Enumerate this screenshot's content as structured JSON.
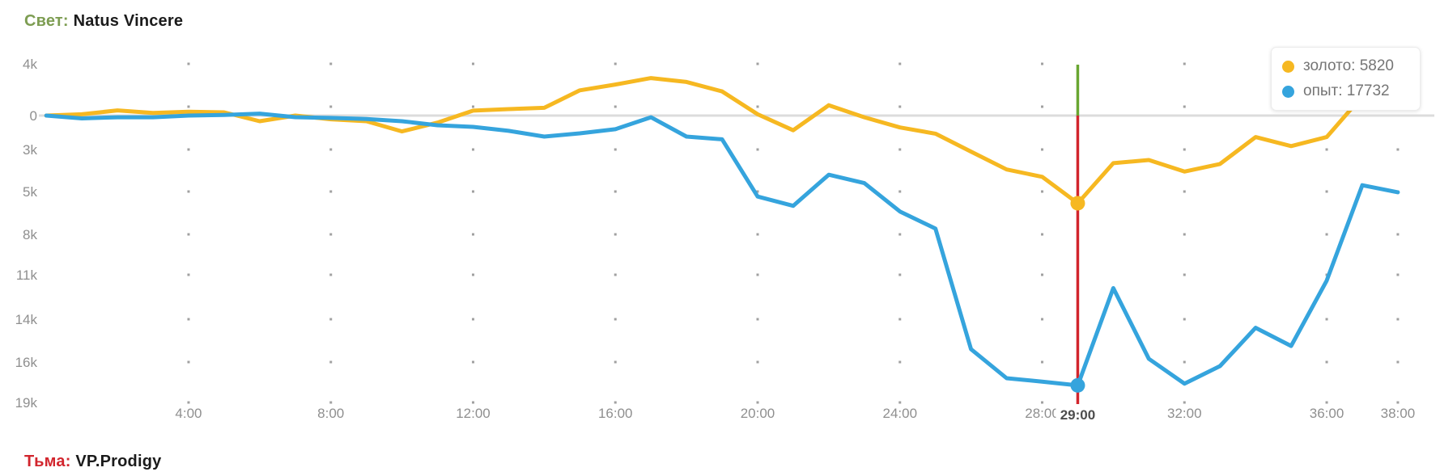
{
  "header": {
    "side_label": "Свет:",
    "team": "Natus Vincere"
  },
  "footer": {
    "side_label": "Тьма:",
    "team": "VP.Prodigy"
  },
  "legend": {
    "gold_label": "золото: 5820",
    "xp_label": "опыт: 17732"
  },
  "chart_data": {
    "type": "line",
    "x_unit": "minutes",
    "x_start_minute": 0,
    "x_step_minutes": 1,
    "x_end_minute": 38,
    "series": [
      {
        "name": "золото",
        "color": "#F6B821",
        "values": [
          0,
          100,
          400,
          200,
          300,
          250,
          -500,
          0,
          -330,
          -500,
          -1400,
          -620,
          380,
          500,
          600,
          1950,
          2400,
          2900,
          2600,
          1870,
          100,
          -1300,
          800,
          -150,
          -1050,
          -1600,
          -3100,
          -3950,
          -4300,
          -5820,
          -3650,
          -3500,
          -4050,
          -3690,
          -1900,
          -2700,
          -1900,
          1500,
          2600
        ]
      },
      {
        "name": "опыт",
        "color": "#35A4DD",
        "values": [
          0,
          -250,
          -150,
          -150,
          0,
          50,
          150,
          -140,
          -210,
          -310,
          -500,
          -860,
          -1000,
          -1350,
          -1860,
          -1570,
          -1210,
          -150,
          -1860,
          -2100,
          -5350,
          -6000,
          -4200,
          -4600,
          -6400,
          -7600,
          -15400,
          -17200,
          -17450,
          -17732,
          -11900,
          -15850,
          -17600,
          -16300,
          -14400,
          -15250,
          -11400,
          -4700,
          -5050
        ]
      }
    ],
    "marker": {
      "minute": 29,
      "label": "29:00",
      "gold_value": 5820,
      "xp_value": 17732,
      "line_color_above_zero": "#69A631",
      "line_color_below_zero": "#D2252D"
    },
    "y_ticks": [
      {
        "label": "4k",
        "value": 4000
      },
      {
        "label": "0",
        "value": 0
      },
      {
        "label": "3k",
        "value": -3000
      },
      {
        "label": "5k",
        "value": -5000
      },
      {
        "label": "8k",
        "value": -8000
      },
      {
        "label": "11k",
        "value": -11000
      },
      {
        "label": "14k",
        "value": -14000
      },
      {
        "label": "16k",
        "value": -16000
      },
      {
        "label": "19k",
        "value": -19000
      }
    ],
    "x_ticks": [
      {
        "label": "4:00",
        "minute": 4
      },
      {
        "label": "8:00",
        "minute": 8
      },
      {
        "label": "12:00",
        "minute": 12
      },
      {
        "label": "16:00",
        "minute": 16
      },
      {
        "label": "20:00",
        "minute": 20
      },
      {
        "label": "24:00",
        "minute": 24
      },
      {
        "label": "28:00",
        "minute": 28
      },
      {
        "label": "29:00",
        "minute": 29,
        "bold": true
      },
      {
        "label": "32:00",
        "minute": 32
      },
      {
        "label": "36:00",
        "minute": 36
      },
      {
        "label": "38:00",
        "minute": 38
      }
    ],
    "colors": {
      "radiant_green": "#7d9d52",
      "dire_red": "#D2252D",
      "zero_line": "#DCDCDC",
      "grid_dot": "#A0A0A0",
      "axis_text": "#8F8F8F",
      "bold_tick_text": "#4d4d4d"
    }
  }
}
